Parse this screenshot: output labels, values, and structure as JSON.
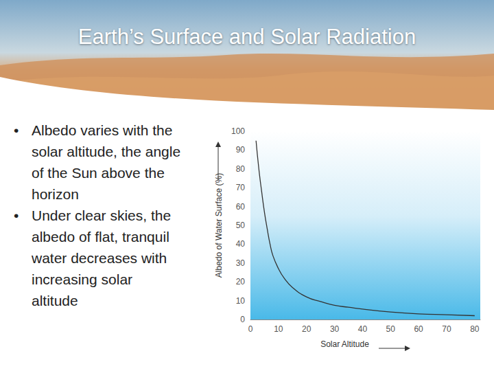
{
  "slide": {
    "title": "Earth’s Surface and Solar Radiation",
    "bullets": [
      "Albedo varies with the solar altitude, the angle of the Sun above the horizon",
      "Under clear skies, the albedo of flat, tranquil water decreases with increasing solar altitude"
    ]
  },
  "chart_data": {
    "type": "line",
    "x": [
      2,
      3,
      4,
      5,
      6,
      7,
      8,
      10,
      12,
      15,
      20,
      25,
      30,
      35,
      40,
      50,
      60,
      70,
      80
    ],
    "values": [
      95,
      80,
      68,
      57,
      48,
      40,
      34,
      27,
      22,
      17,
      12,
      9.5,
      7.5,
      6.5,
      5.5,
      4,
      3,
      2.5,
      2
    ],
    "color": "#333333",
    "xlabel": "Solar Altitude",
    "ylabel": "Albedo of Water Surface (%)",
    "xlim": [
      0,
      82
    ],
    "ylim": [
      0,
      100
    ],
    "xticks": [
      0,
      10,
      20,
      30,
      40,
      50,
      60,
      70,
      80
    ],
    "yticks": [
      0,
      10,
      20,
      30,
      40,
      50,
      60,
      70,
      80,
      90,
      100
    ],
    "grid": false,
    "marker": "none",
    "line_style": "solid"
  }
}
